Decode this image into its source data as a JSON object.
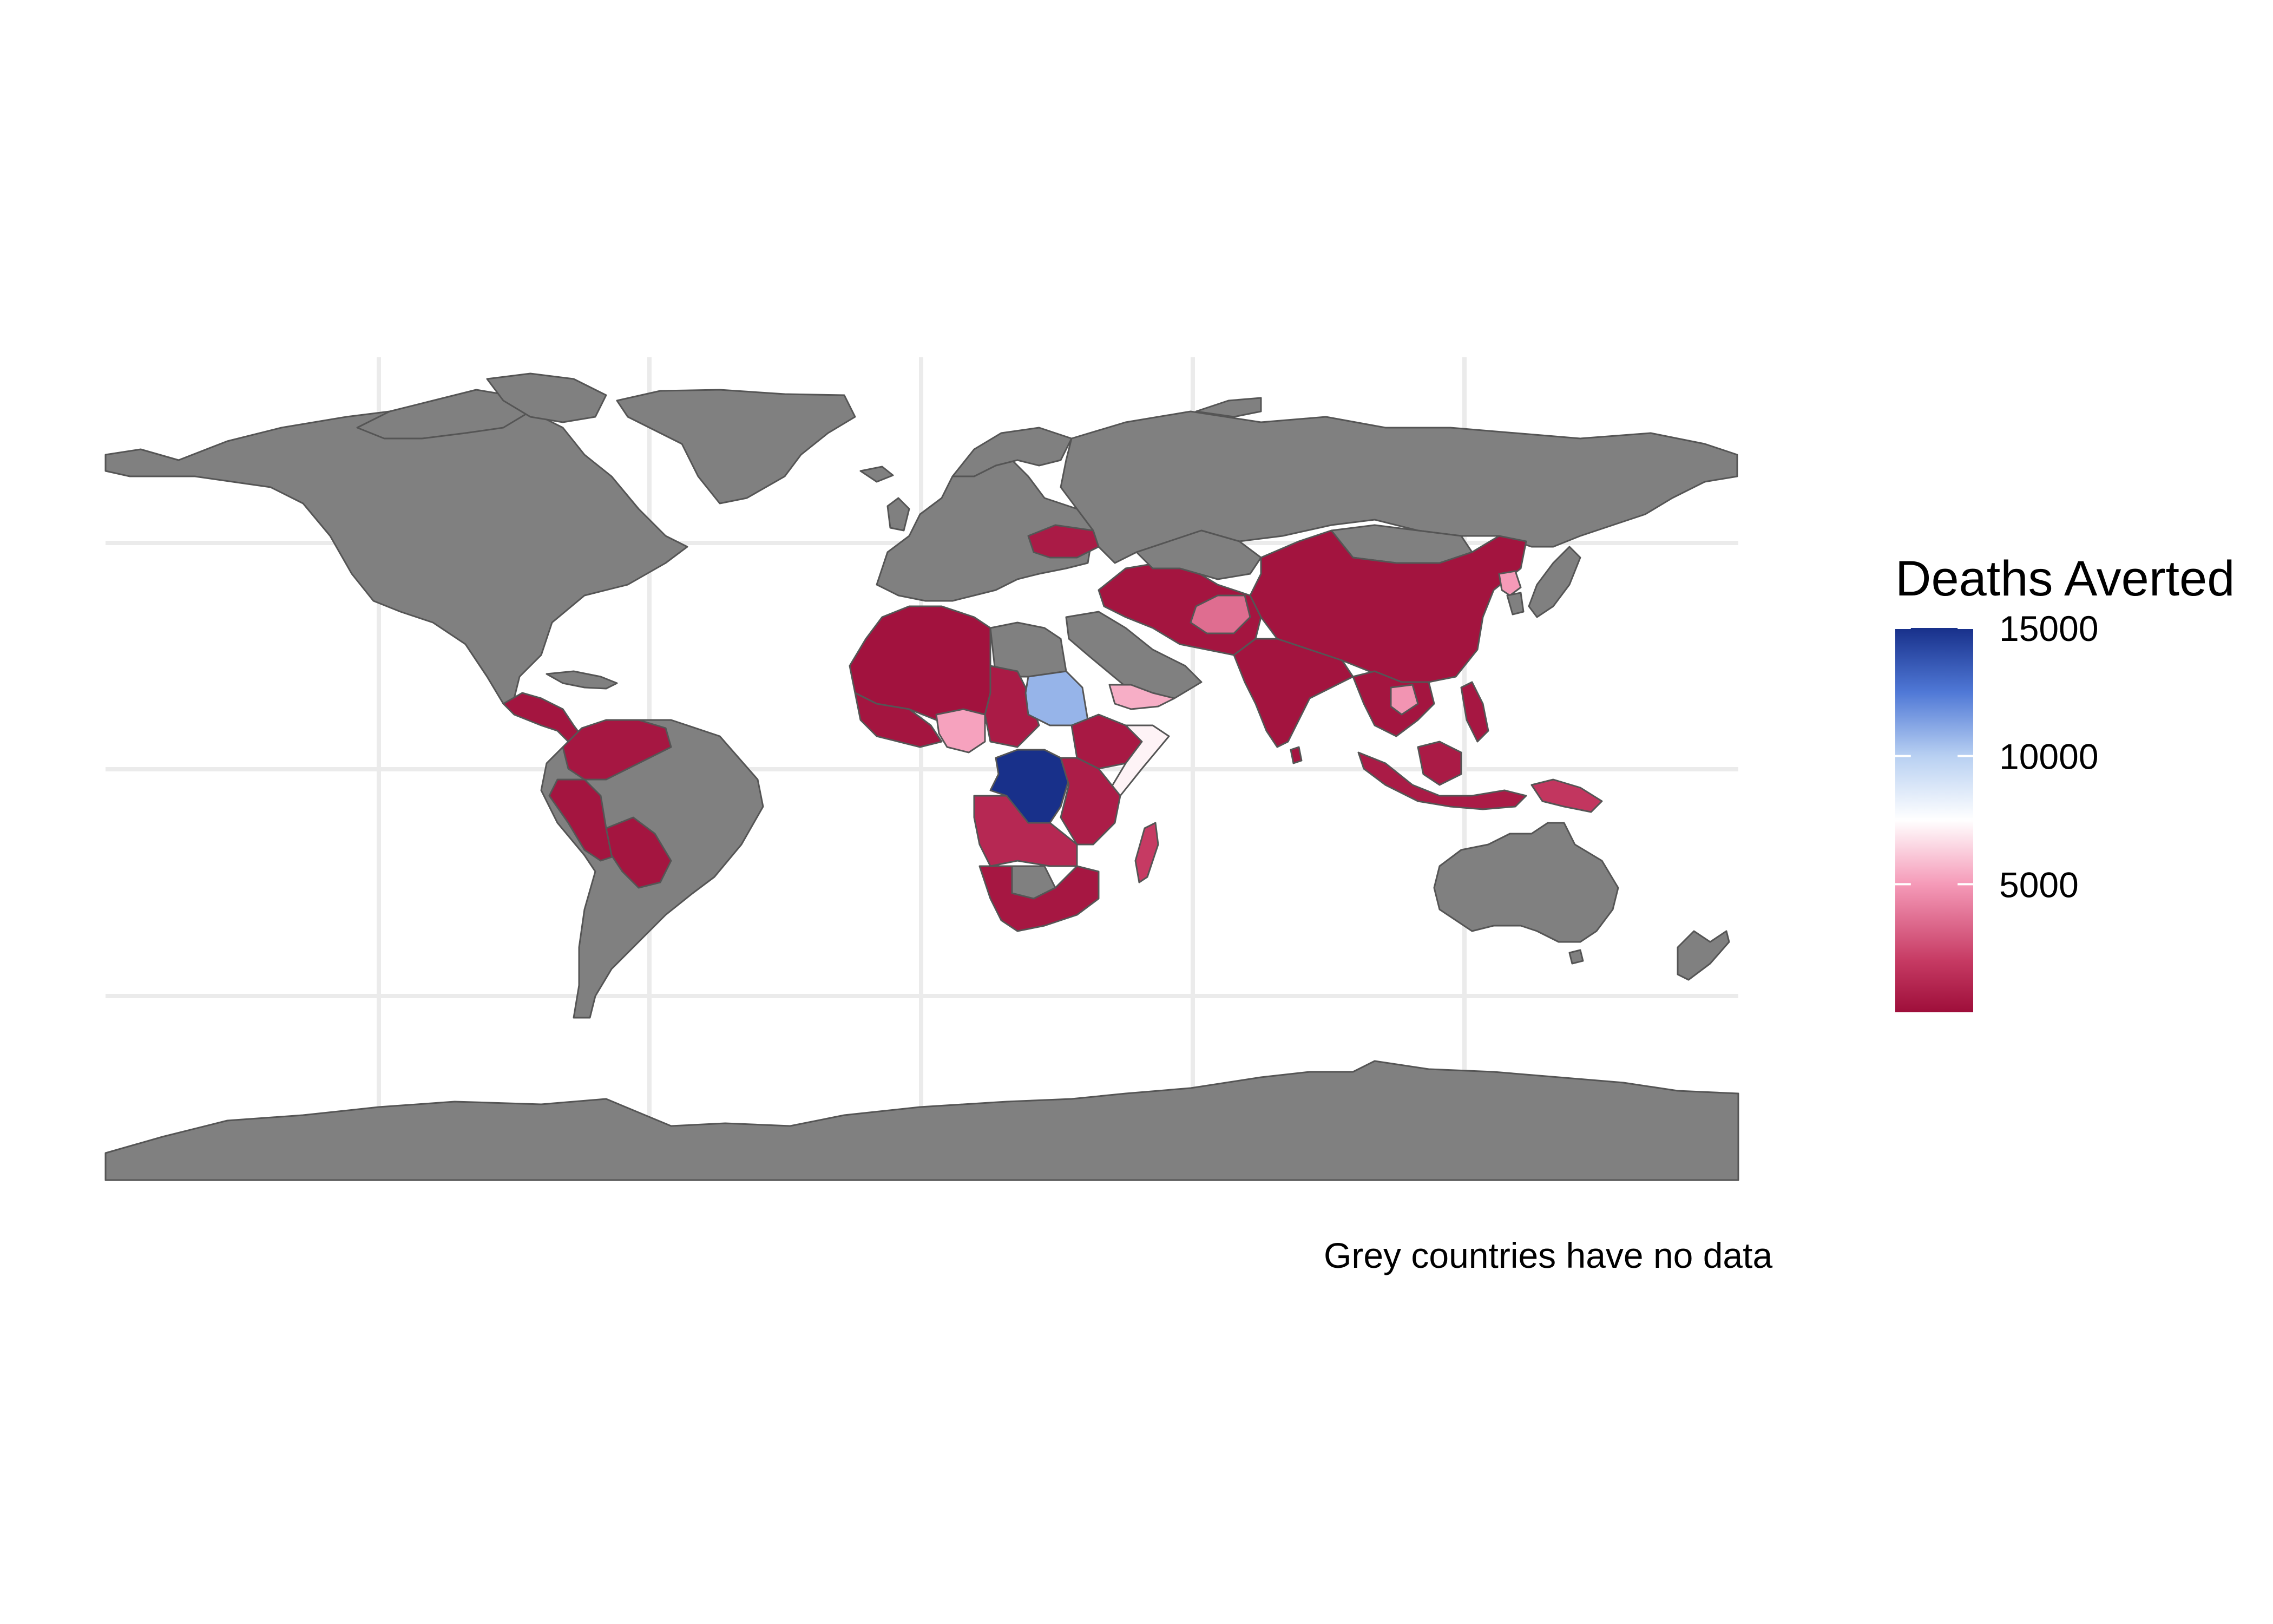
{
  "map": {
    "no_data_color": "#808080",
    "ocean_color": "#ffffff",
    "grid_color": "#ebebeb",
    "border_color": "#555555",
    "regions": [
      {
        "name": "North America",
        "has_data": false
      },
      {
        "name": "Greenland",
        "has_data": false
      },
      {
        "name": "Central America",
        "has_data": true,
        "value": 300
      },
      {
        "name": "Caribbean",
        "has_data": false
      },
      {
        "name": "South America",
        "has_data": false
      },
      {
        "name": "Colombia-Venezuela",
        "has_data": true,
        "value": 400
      },
      {
        "name": "Peru-Ecuador",
        "has_data": true,
        "value": 300
      },
      {
        "name": "Bolivia",
        "has_data": true,
        "value": 300
      },
      {
        "name": "Europe",
        "has_data": false
      },
      {
        "name": "Ukraine",
        "has_data": true,
        "value": 600
      },
      {
        "name": "Russia",
        "has_data": false
      },
      {
        "name": "North Africa",
        "has_data": true,
        "value": 200
      },
      {
        "name": "Egypt",
        "has_data": false
      },
      {
        "name": "West Africa",
        "has_data": true,
        "value": 300
      },
      {
        "name": "Nigeria",
        "has_data": true,
        "value": 5200
      },
      {
        "name": "Sudan",
        "has_data": true,
        "value": 10800
      },
      {
        "name": "Chad-CAR",
        "has_data": true,
        "value": 600
      },
      {
        "name": "Ethiopia",
        "has_data": true,
        "value": 500
      },
      {
        "name": "Somalia",
        "has_data": true,
        "value": 7200
      },
      {
        "name": "DR Congo",
        "has_data": true,
        "value": 15000
      },
      {
        "name": "East Africa",
        "has_data": true,
        "value": 700
      },
      {
        "name": "Angola-Zambia",
        "has_data": true,
        "value": 1200
      },
      {
        "name": "Botswana",
        "has_data": false
      },
      {
        "name": "Southern Africa",
        "has_data": true,
        "value": 400
      },
      {
        "name": "Madagascar",
        "has_data": true,
        "value": 2000
      },
      {
        "name": "Arabia",
        "has_data": false
      },
      {
        "name": "Yemen",
        "has_data": true,
        "value": 5500
      },
      {
        "name": "Iran-Middle Asia",
        "has_data": true,
        "value": 300
      },
      {
        "name": "Afghanistan",
        "has_data": true,
        "value": 3600
      },
      {
        "name": "Kazakhstan",
        "has_data": false
      },
      {
        "name": "Mongolia",
        "has_data": false
      },
      {
        "name": "China",
        "has_data": true,
        "value": 250
      },
      {
        "name": "North Korea",
        "has_data": true,
        "value": 5000
      },
      {
        "name": "Japan",
        "has_data": false
      },
      {
        "name": "South Korea",
        "has_data": false
      },
      {
        "name": "India",
        "has_data": true,
        "value": 250
      },
      {
        "name": "Sri Lanka",
        "has_data": true,
        "value": 300
      },
      {
        "name": "Myanmar-Indochina",
        "has_data": true,
        "value": 300
      },
      {
        "name": "Cambodia",
        "has_data": true,
        "value": 4800
      },
      {
        "name": "Philippines",
        "has_data": true,
        "value": 400
      },
      {
        "name": "Indonesia",
        "has_data": true,
        "value": 600
      },
      {
        "name": "Papua New Guinea",
        "has_data": true,
        "value": 1800
      },
      {
        "name": "Australia",
        "has_data": false
      },
      {
        "name": "New Zealand",
        "has_data": false
      },
      {
        "name": "Antarctica",
        "has_data": false
      }
    ]
  },
  "legend": {
    "title": "Deaths Averted",
    "ticks": [
      5000,
      10000,
      15000
    ],
    "tick_labels": [
      "5000",
      "10000",
      "15000"
    ],
    "min": 0,
    "max": 15000,
    "colors": [
      {
        "value": 0,
        "color": "#9e0e3a"
      },
      {
        "value": 2000,
        "color": "#c63a63"
      },
      {
        "value": 5000,
        "color": "#f59ab8"
      },
      {
        "value": 7500,
        "color": "#ffffff"
      },
      {
        "value": 10000,
        "color": "#b8d0f2"
      },
      {
        "value": 12500,
        "color": "#4f78d6"
      },
      {
        "value": 15000,
        "color": "#18308a"
      }
    ]
  },
  "caption": "Grey countries have no data"
}
